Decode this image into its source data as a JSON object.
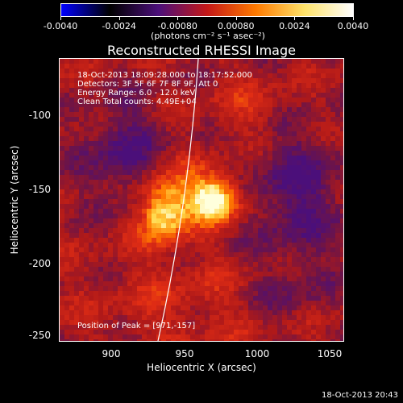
{
  "colorbar": {
    "ticks": [
      "-0.0040",
      "-0.0024",
      "-0.00080",
      "0.00080",
      "0.0024",
      "0.0040"
    ],
    "units": "(photons cm⁻² s⁻¹ asec⁻²)",
    "colors": [
      "#0000ff",
      "#000000",
      "#4b0f7a",
      "#c41818",
      "#ff7a00",
      "#ffe36a",
      "#ffffff"
    ]
  },
  "title": "Reconstructed RHESSI Image",
  "annotations": {
    "time_range": "18-Oct-2013 18:09:28.000 to 18:17:52.000",
    "detectors": "Detectors: 3F 5F 6F 7F 8F 9F, Att 0",
    "energy_range": "Energy Range: 6.0 - 12.0 keV",
    "clean_counts": "Clean    Total counts: 4.49E+04",
    "peak": "Position of Peak = [971,-157]"
  },
  "axes": {
    "xlabel": "Heliocentric X (arcsec)",
    "ylabel": "Heliocentric Y (arcsec)",
    "xticks": [
      "900",
      "950",
      "1000",
      "1050"
    ],
    "yticks": [
      "-100",
      "-150",
      "-200",
      "-250"
    ],
    "xrange": [
      866,
      1057
    ],
    "yrange": [
      -255,
      -64
    ]
  },
  "footer": {
    "timestamp": "18-Oct-2013 20:43"
  }
}
